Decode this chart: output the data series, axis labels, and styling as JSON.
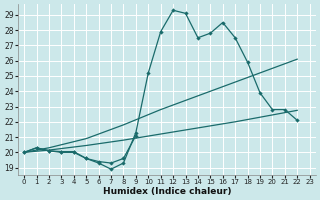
{
  "xlabel": "Humidex (Indice chaleur)",
  "bg_color": "#cce8ea",
  "grid_color": "#aacfcf",
  "line_color": "#1a6b6b",
  "xlim": [
    -0.5,
    23.5
  ],
  "ylim": [
    18.5,
    29.7
  ],
  "yticks": [
    19,
    20,
    21,
    22,
    23,
    24,
    25,
    26,
    27,
    28,
    29
  ],
  "xticks": [
    0,
    1,
    2,
    3,
    4,
    5,
    6,
    7,
    8,
    9,
    10,
    11,
    12,
    13,
    14,
    15,
    16,
    17,
    18,
    19,
    20,
    21,
    22,
    23
  ],
  "line1_x": [
    0,
    1,
    2,
    3,
    4,
    5,
    6,
    7,
    8,
    9,
    10,
    11,
    12,
    13,
    14,
    15,
    16,
    17,
    18,
    19,
    20,
    21,
    22
  ],
  "line1_y": [
    20.0,
    20.3,
    20.1,
    20.0,
    20.0,
    19.6,
    19.3,
    18.9,
    19.3,
    21.3,
    25.2,
    27.9,
    29.3,
    29.1,
    27.5,
    27.8,
    28.5,
    27.5,
    25.9,
    23.9,
    22.8,
    22.8,
    22.1
  ],
  "line2_x": [
    0,
    1,
    2,
    3,
    4,
    5,
    6,
    7,
    8,
    9
  ],
  "line2_y": [
    20.0,
    20.3,
    20.1,
    20.05,
    20.05,
    19.6,
    19.4,
    19.3,
    19.6,
    21.1
  ],
  "line3_x": [
    0,
    2,
    5,
    8,
    11,
    14,
    17,
    19,
    21,
    22
  ],
  "line3_y": [
    20.0,
    20.3,
    20.9,
    21.8,
    22.8,
    23.7,
    24.6,
    25.2,
    25.8,
    26.1
  ],
  "line4_x": [
    0,
    2,
    5,
    8,
    11,
    14,
    17,
    19,
    21,
    22
  ],
  "line4_y": [
    20.0,
    20.15,
    20.45,
    20.8,
    21.2,
    21.6,
    22.0,
    22.3,
    22.6,
    22.75
  ]
}
